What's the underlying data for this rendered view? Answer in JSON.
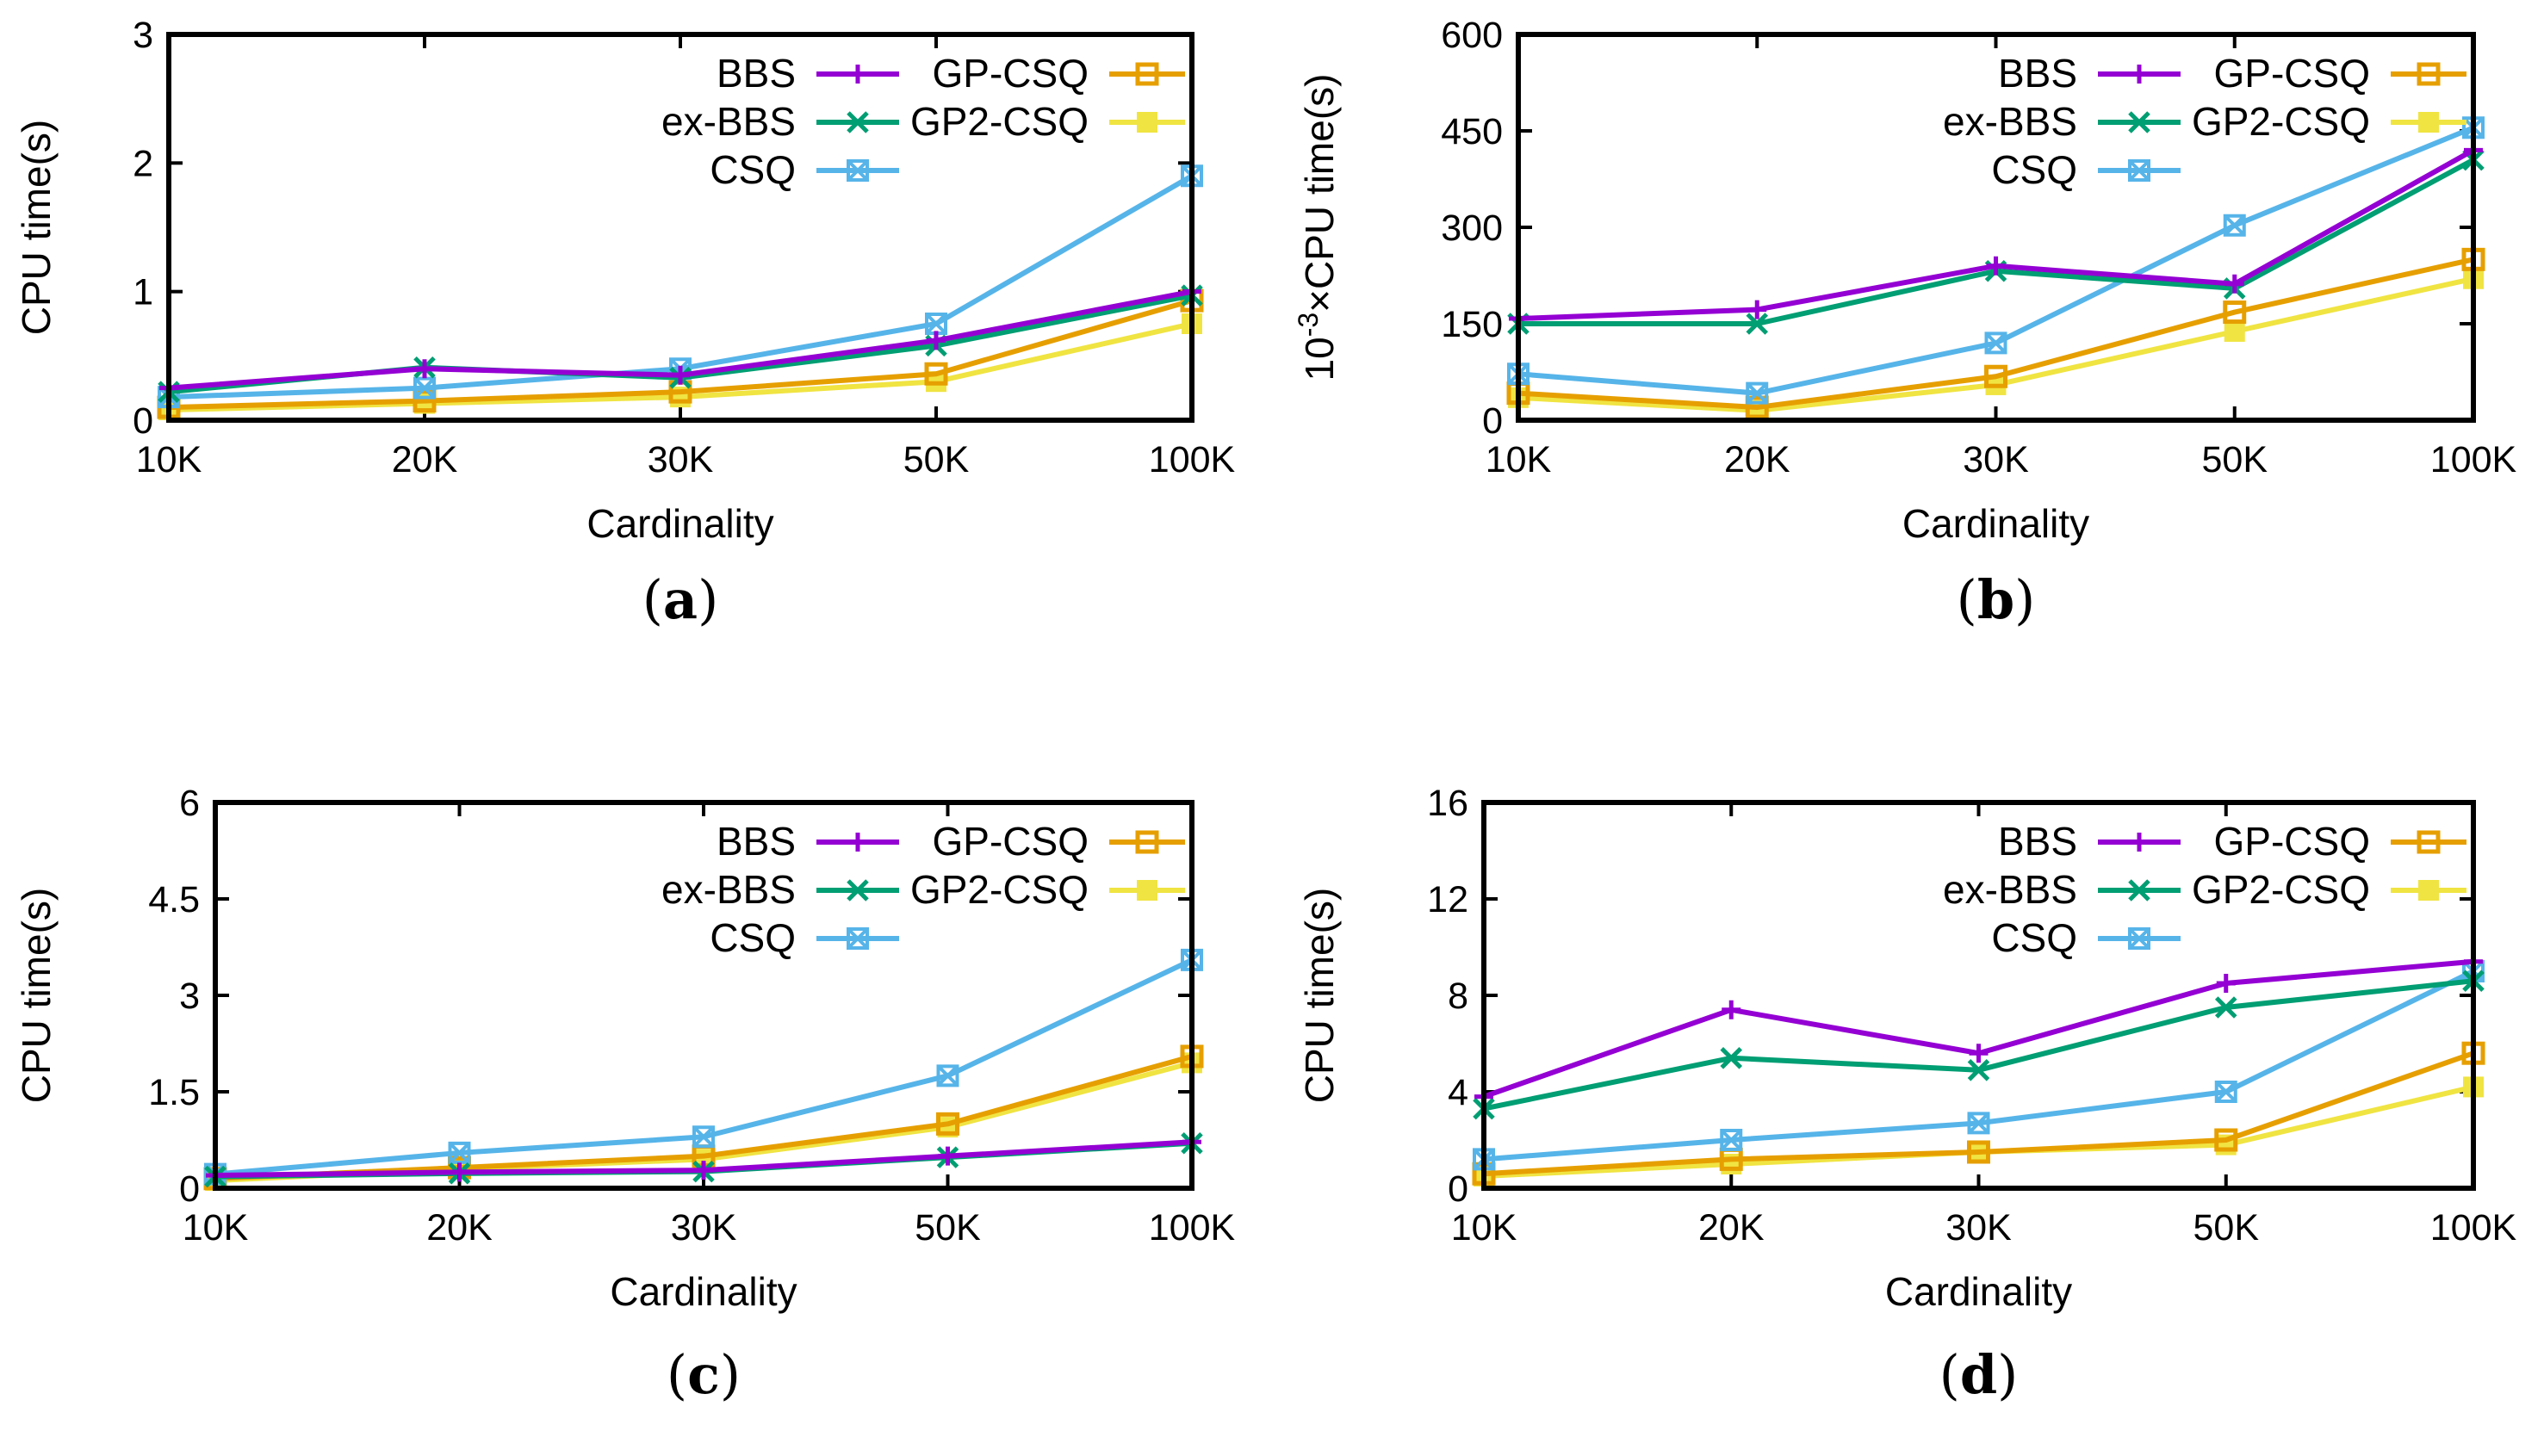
{
  "colors": {
    "BBS": "#9400D3",
    "ex-BBS": "#009E73",
    "CSQ": "#56B4E9",
    "GP-CSQ": "#E69F00",
    "GP2-CSQ": "#F0E442"
  },
  "chart_data": [
    {
      "type": "line",
      "caption": "a",
      "xlabel": "Cardinality",
      "ylabel": "CPU time(s)",
      "categories": [
        "10K",
        "20K",
        "30K",
        "50K",
        "100K"
      ],
      "ylim": [
        0,
        3
      ],
      "yticks": [
        0,
        1,
        2,
        3
      ],
      "ytick_labels": [
        "0",
        "1",
        "2",
        "3"
      ],
      "legend": "top-right",
      "series": [
        {
          "name": "BBS",
          "marker": "plus",
          "values": [
            0.25,
            0.4,
            0.35,
            0.62,
            1.0
          ]
        },
        {
          "name": "ex-BBS",
          "marker": "x",
          "values": [
            0.22,
            0.41,
            0.33,
            0.58,
            0.97
          ]
        },
        {
          "name": "CSQ",
          "marker": "xbox",
          "values": [
            0.18,
            0.25,
            0.4,
            0.75,
            1.9
          ]
        },
        {
          "name": "GP-CSQ",
          "marker": "square",
          "values": [
            0.1,
            0.15,
            0.22,
            0.36,
            0.93
          ]
        },
        {
          "name": "GP2-CSQ",
          "marker": "filled-square",
          "values": [
            0.08,
            0.13,
            0.18,
            0.3,
            0.75
          ]
        }
      ]
    },
    {
      "type": "line",
      "caption": "b",
      "xlabel": "Cardinality",
      "ylabel": "10-3×CPU time(s)",
      "ylabel_parts": [
        "10",
        "-3",
        "×CPU time(s)"
      ],
      "categories": [
        "10K",
        "20K",
        "30K",
        "50K",
        "100K"
      ],
      "ylim": [
        0,
        600
      ],
      "yticks": [
        0,
        150,
        300,
        450,
        600
      ],
      "ytick_labels": [
        "0",
        "150",
        "300",
        "450",
        "600"
      ],
      "legend": "top-right",
      "series": [
        {
          "name": "BBS",
          "marker": "plus",
          "values": [
            158,
            172,
            240,
            212,
            420
          ]
        },
        {
          "name": "ex-BBS",
          "marker": "x",
          "values": [
            150,
            150,
            232,
            205,
            405
          ]
        },
        {
          "name": "CSQ",
          "marker": "xbox",
          "values": [
            72,
            42,
            120,
            303,
            455
          ]
        },
        {
          "name": "GP-CSQ",
          "marker": "square",
          "values": [
            42,
            20,
            68,
            168,
            250
          ]
        },
        {
          "name": "GP2-CSQ",
          "marker": "filled-square",
          "values": [
            35,
            15,
            55,
            138,
            220
          ]
        }
      ]
    },
    {
      "type": "line",
      "caption": "c",
      "xlabel": "Cardinality",
      "ylabel": "CPU time(s)",
      "categories": [
        "10K",
        "20K",
        "30K",
        "50K",
        "100K"
      ],
      "ylim": [
        0,
        6
      ],
      "yticks": [
        0,
        1.5,
        3,
        4.5,
        6
      ],
      "ytick_labels": [
        "0",
        "1.5",
        "3",
        "4.5",
        "6"
      ],
      "legend": "top-right",
      "series": [
        {
          "name": "BBS",
          "marker": "plus",
          "values": [
            0.2,
            0.25,
            0.28,
            0.5,
            0.72
          ]
        },
        {
          "name": "ex-BBS",
          "marker": "x",
          "values": [
            0.18,
            0.23,
            0.26,
            0.48,
            0.7
          ]
        },
        {
          "name": "CSQ",
          "marker": "xbox",
          "values": [
            0.22,
            0.55,
            0.8,
            1.75,
            3.55
          ]
        },
        {
          "name": "GP-CSQ",
          "marker": "square",
          "values": [
            0.15,
            0.32,
            0.5,
            1.0,
            2.05
          ]
        },
        {
          "name": "GP2-CSQ",
          "marker": "filled-square",
          "values": [
            0.12,
            0.3,
            0.45,
            0.95,
            1.95
          ]
        }
      ]
    },
    {
      "type": "line",
      "caption": "d",
      "xlabel": "Cardinality",
      "ylabel": "CPU time(s)",
      "categories": [
        "10K",
        "20K",
        "30K",
        "50K",
        "100K"
      ],
      "ylim": [
        0,
        16
      ],
      "yticks": [
        0,
        4,
        8,
        12,
        16
      ],
      "ytick_labels": [
        "0",
        "4",
        "8",
        "12",
        "16"
      ],
      "legend": "top-right",
      "series": [
        {
          "name": "BBS",
          "marker": "plus",
          "values": [
            3.8,
            7.4,
            5.6,
            8.5,
            9.4
          ]
        },
        {
          "name": "ex-BBS",
          "marker": "x",
          "values": [
            3.3,
            5.4,
            4.9,
            7.5,
            8.6
          ]
        },
        {
          "name": "CSQ",
          "marker": "xbox",
          "values": [
            1.2,
            2.0,
            2.7,
            4.0,
            9.0
          ]
        },
        {
          "name": "GP-CSQ",
          "marker": "square",
          "values": [
            0.6,
            1.2,
            1.5,
            2.0,
            5.6
          ]
        },
        {
          "name": "GP2-CSQ",
          "marker": "filled-square",
          "values": [
            0.5,
            1.0,
            1.5,
            1.8,
            4.2
          ]
        }
      ]
    }
  ]
}
